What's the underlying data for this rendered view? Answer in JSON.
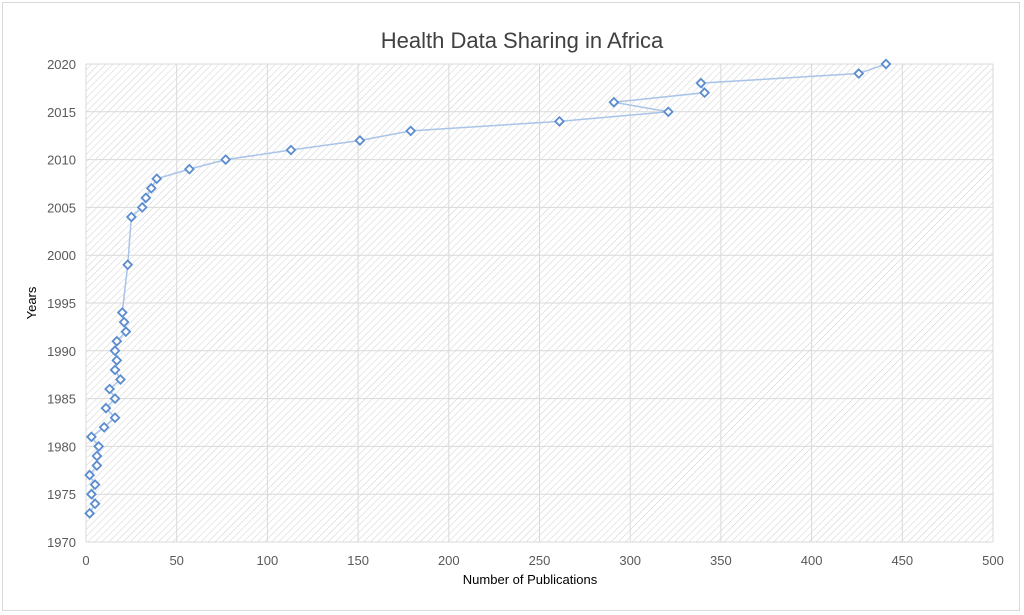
{
  "chart_data": {
    "type": "scatter",
    "title": "Health Data Sharing in Africa",
    "xlabel": "Number of Publications",
    "ylabel": "Years",
    "xlim": [
      0,
      500
    ],
    "ylim": [
      1970,
      2020
    ],
    "x_ticks": [
      "0",
      "50",
      "100",
      "150",
      "200",
      "250",
      "300",
      "350",
      "400",
      "450",
      "500"
    ],
    "y_ticks": [
      "1970",
      "1975",
      "1980",
      "1985",
      "1990",
      "1995",
      "2000",
      "2005",
      "2010",
      "2015",
      "2020"
    ],
    "grid": true,
    "legend": "none",
    "marker": "diamond",
    "line": "straight",
    "series_color": "#5b8ccf",
    "line_color": "#a9c4e8",
    "points": [
      {
        "x": 2,
        "y": 1973
      },
      {
        "x": 5,
        "y": 1974
      },
      {
        "x": 3,
        "y": 1975
      },
      {
        "x": 5,
        "y": 1976
      },
      {
        "x": 2,
        "y": 1977
      },
      {
        "x": 6,
        "y": 1978
      },
      {
        "x": 6,
        "y": 1979
      },
      {
        "x": 7,
        "y": 1980
      },
      {
        "x": 3,
        "y": 1981
      },
      {
        "x": 10,
        "y": 1982
      },
      {
        "x": 16,
        "y": 1983
      },
      {
        "x": 11,
        "y": 1984
      },
      {
        "x": 16,
        "y": 1985
      },
      {
        "x": 13,
        "y": 1986
      },
      {
        "x": 19,
        "y": 1987
      },
      {
        "x": 16,
        "y": 1988
      },
      {
        "x": 17,
        "y": 1989
      },
      {
        "x": 16,
        "y": 1990
      },
      {
        "x": 17,
        "y": 1991
      },
      {
        "x": 22,
        "y": 1992
      },
      {
        "x": 21,
        "y": 1993
      },
      {
        "x": 20,
        "y": 1994
      },
      {
        "x": 23,
        "y": 1999
      },
      {
        "x": 25,
        "y": 2004
      },
      {
        "x": 31,
        "y": 2005
      },
      {
        "x": 33,
        "y": 2006
      },
      {
        "x": 36,
        "y": 2007
      },
      {
        "x": 39,
        "y": 2008
      },
      {
        "x": 57,
        "y": 2009
      },
      {
        "x": 77,
        "y": 2010
      },
      {
        "x": 113,
        "y": 2011
      },
      {
        "x": 151,
        "y": 2012
      },
      {
        "x": 179,
        "y": 2013
      },
      {
        "x": 261,
        "y": 2014
      },
      {
        "x": 321,
        "y": 2015
      },
      {
        "x": 291,
        "y": 2016
      },
      {
        "x": 341,
        "y": 2017
      },
      {
        "x": 339,
        "y": 2018
      },
      {
        "x": 426,
        "y": 2019
      },
      {
        "x": 441,
        "y": 2020
      }
    ]
  }
}
